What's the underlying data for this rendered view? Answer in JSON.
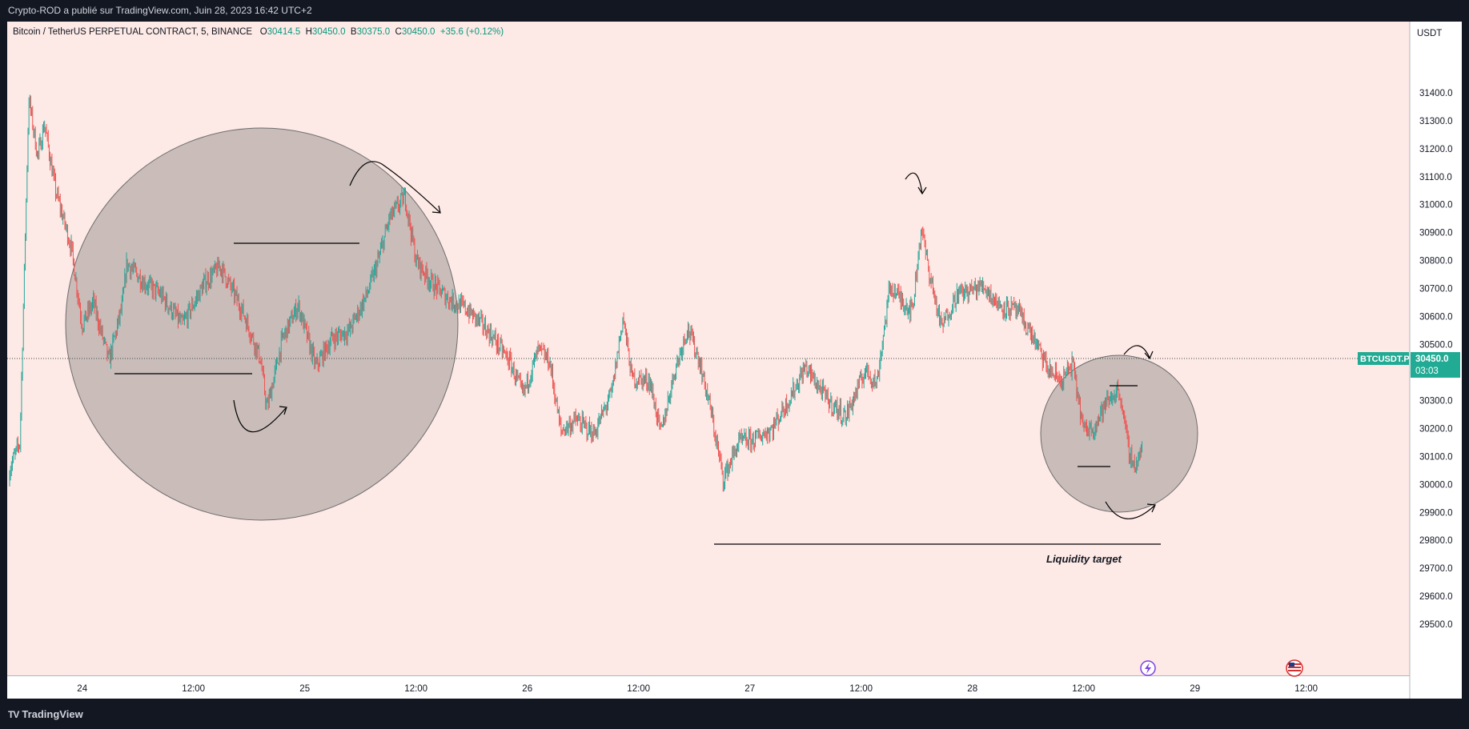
{
  "header": {
    "publisher_line": "Crypto-ROD a publié sur TradingView.com, Juin 28, 2023 16:42 UTC+2"
  },
  "symbol": {
    "name": "Bitcoin / TetherUS PERPETUAL CONTRACT, 5, BINANCE",
    "o_label": "O",
    "o": "30414.5",
    "h_label": "H",
    "h": "30450.0",
    "l_label": "B",
    "l": "30375.0",
    "c_label": "C",
    "c": "30450.0",
    "change": "+35.6 (+0.12%)"
  },
  "price_axis": {
    "unit": "USDT",
    "current_price": "30450.0",
    "countdown": "03:03",
    "ticker_tag": "BTCUSDT.P"
  },
  "annotation": {
    "liquidity_label": "Liquidity target"
  },
  "footer": {
    "brand": "TradingView"
  },
  "colors": {
    "up": "#26a69a",
    "down": "#ef5350",
    "background": "#fde9e5",
    "circle_fill": "#c9bcb9",
    "price_tag": "#22ab94"
  },
  "chart_data": {
    "type": "candlestick",
    "interval": "5",
    "y_ticks": [
      29500,
      29600,
      29700,
      29800,
      29900,
      30000,
      30100,
      30200,
      30300,
      30400,
      30500,
      30600,
      30700,
      30800,
      30900,
      31000,
      31100,
      31200,
      31300,
      31400
    ],
    "y_tick_labels": [
      "29500.0",
      "29600.0",
      "29700.0",
      "29800.0",
      "29900.0",
      "30000.0",
      "30100.0",
      "30200.0",
      "30300.0",
      "30400.0",
      "30500.0",
      "30600.0",
      "30700.0",
      "30800.0",
      "30900.0",
      "31000.0",
      "31100.0",
      "31200.0",
      "31300.0",
      "31400.0"
    ],
    "x_ticks": [
      {
        "label": "24",
        "t": 24.0
      },
      {
        "label": "12:00",
        "t": 24.5
      },
      {
        "label": "25",
        "t": 25.0
      },
      {
        "label": "12:00",
        "t": 25.5
      },
      {
        "label": "26",
        "t": 26.0
      },
      {
        "label": "12:00",
        "t": 26.5
      },
      {
        "label": "27",
        "t": 27.0
      },
      {
        "label": "12:00",
        "t": 27.5
      },
      {
        "label": "28",
        "t": 28.0
      },
      {
        "label": "12:00",
        "t": 28.5
      },
      {
        "label": "29",
        "t": 29.0
      },
      {
        "label": "12:00",
        "t": 29.5
      }
    ],
    "path_points": [
      [
        23.6,
        30000
      ],
      [
        23.67,
        30050
      ],
      [
        23.72,
        30150
      ],
      [
        23.76,
        31380
      ],
      [
        23.8,
        31170
      ],
      [
        23.83,
        31290
      ],
      [
        23.88,
        31050
      ],
      [
        23.95,
        30850
      ],
      [
        24.0,
        30570
      ],
      [
        24.05,
        30650
      ],
      [
        24.12,
        30440
      ],
      [
        24.18,
        30640
      ],
      [
        24.2,
        30790
      ],
      [
        24.28,
        30720
      ],
      [
        24.35,
        30680
      ],
      [
        24.45,
        30570
      ],
      [
        24.55,
        30720
      ],
      [
        24.62,
        30780
      ],
      [
        24.72,
        30620
      ],
      [
        24.8,
        30450
      ],
      [
        24.83,
        30270
      ],
      [
        24.9,
        30520
      ],
      [
        24.97,
        30640
      ],
      [
        25.05,
        30420
      ],
      [
        25.12,
        30520
      ],
      [
        25.2,
        30550
      ],
      [
        25.28,
        30680
      ],
      [
        25.33,
        30800
      ],
      [
        25.38,
        30950
      ],
      [
        25.45,
        31030
      ],
      [
        25.5,
        30800
      ],
      [
        25.57,
        30720
      ],
      [
        25.65,
        30660
      ],
      [
        25.72,
        30630
      ],
      [
        25.8,
        30570
      ],
      [
        25.85,
        30520
      ],
      [
        25.92,
        30440
      ],
      [
        25.98,
        30320
      ],
      [
        26.05,
        30480
      ],
      [
        26.1,
        30440
      ],
      [
        26.15,
        30190
      ],
      [
        26.22,
        30230
      ],
      [
        26.3,
        30180
      ],
      [
        26.38,
        30330
      ],
      [
        26.43,
        30600
      ],
      [
        26.47,
        30380
      ],
      [
        26.55,
        30370
      ],
      [
        26.6,
        30180
      ],
      [
        26.66,
        30400
      ],
      [
        26.72,
        30560
      ],
      [
        26.77,
        30450
      ],
      [
        26.82,
        30280
      ],
      [
        26.88,
        30020
      ],
      [
        26.95,
        30150
      ],
      [
        27.02,
        30160
      ],
      [
        27.1,
        30200
      ],
      [
        27.18,
        30310
      ],
      [
        27.25,
        30420
      ],
      [
        27.35,
        30300
      ],
      [
        27.43,
        30240
      ],
      [
        27.52,
        30410
      ],
      [
        27.57,
        30360
      ],
      [
        27.63,
        30710
      ],
      [
        27.68,
        30660
      ],
      [
        27.73,
        30620
      ],
      [
        27.77,
        30920
      ],
      [
        27.8,
        30780
      ],
      [
        27.86,
        30560
      ],
      [
        27.93,
        30680
      ],
      [
        27.98,
        30690
      ],
      [
        28.05,
        30710
      ],
      [
        28.12,
        30640
      ],
      [
        28.2,
        30620
      ],
      [
        28.27,
        30530
      ],
      [
        28.34,
        30410
      ],
      [
        28.4,
        30370
      ],
      [
        28.45,
        30430
      ],
      [
        28.5,
        30190
      ],
      [
        28.55,
        30210
      ],
      [
        28.6,
        30290
      ],
      [
        28.66,
        30340
      ],
      [
        28.7,
        30130
      ],
      [
        28.73,
        30060
      ],
      [
        28.77,
        30150
      ],
      [
        28.8,
        30430
      ],
      [
        28.83,
        30450
      ]
    ],
    "current_price": 30450.0
  }
}
